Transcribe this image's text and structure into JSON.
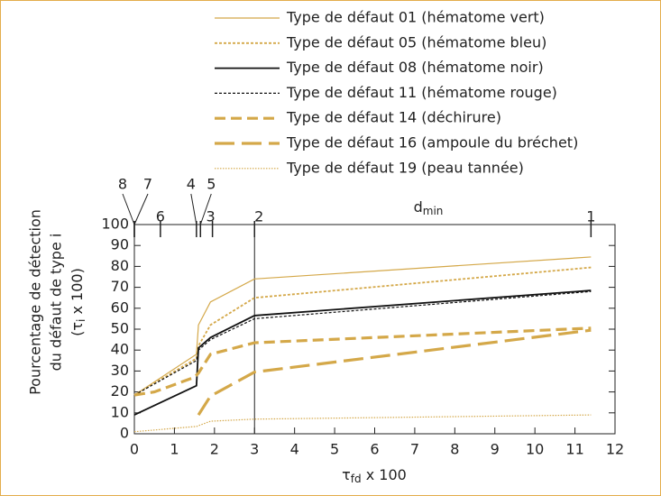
{
  "chart_data": {
    "type": "line",
    "legend_position": "top-right",
    "x_label": [
      "τ",
      "fd",
      " x 100"
    ],
    "y_label": [
      "Pourcentage de détection",
      "du défaut de type i",
      [
        "(τ",
        "i",
        " x 100)"
      ]
    ],
    "top_axis_label": [
      "d",
      "min"
    ],
    "xlim": [
      0,
      12
    ],
    "ylim": [
      0,
      100
    ],
    "xticks": [
      0,
      1,
      2,
      3,
      4,
      5,
      6,
      7,
      8,
      9,
      10,
      11,
      12
    ],
    "yticks": [
      0,
      10,
      20,
      30,
      40,
      50,
      60,
      70,
      80,
      90,
      100
    ],
    "top_xticks": [
      {
        "value": 0,
        "label": "8"
      },
      {
        "value": 0,
        "label": "7"
      },
      {
        "value": 0.65,
        "label": "6"
      },
      {
        "value": 1.55,
        "label": "4"
      },
      {
        "value": 1.65,
        "label": "5"
      },
      {
        "value": 1.95,
        "label": "3"
      },
      {
        "value": 3,
        "label": "2"
      },
      {
        "value": 11.4,
        "label": "1"
      }
    ],
    "series": [
      {
        "name": "Type de défaut 01 (hématome vert)",
        "color": "#d4a849",
        "style": "solid",
        "weight": "thin",
        "x": [
          0,
          1.55,
          1.6,
          1.9,
          3,
          11.4
        ],
        "values": [
          18.5,
          38,
          52,
          63,
          74,
          84.5
        ]
      },
      {
        "name": "Type de défaut 05 (hématome bleu)",
        "color": "#d4a849",
        "style": "dotted",
        "weight": "medium",
        "x": [
          0,
          1.55,
          1.6,
          1.9,
          3,
          11.4
        ],
        "values": [
          18.5,
          36,
          42,
          52,
          65,
          79.5
        ]
      },
      {
        "name": "Type de défaut 08 (hématome noir)",
        "color": "#111111",
        "style": "solid",
        "weight": "medium",
        "x": [
          0,
          1.55,
          1.6,
          1.9,
          3,
          11.4
        ],
        "values": [
          9,
          23,
          41,
          46,
          56.5,
          68.5
        ]
      },
      {
        "name": "Type de défaut 11 (hématome rouge)",
        "color": "#111111",
        "style": "dotted",
        "weight": "thin",
        "x": [
          0,
          1.55,
          1.6,
          1.9,
          3,
          11.4
        ],
        "values": [
          18.5,
          35,
          40,
          45,
          55,
          68
        ]
      },
      {
        "name": "Type de défaut 14 (déchirure)",
        "color": "#d4a849",
        "style": "dashed",
        "weight": "thick",
        "x": [
          0,
          0.5,
          1.5,
          1.6,
          1.9,
          3,
          11.4
        ],
        "values": [
          18.5,
          20,
          27,
          29,
          38,
          43.5,
          50.5
        ]
      },
      {
        "name": "Type de défaut 16 (ampoule du bréchet)",
        "color": "#d4a849",
        "style": "long-dashed",
        "weight": "thick",
        "x": [
          1.6,
          1.9,
          3,
          11.4
        ],
        "values": [
          9,
          18,
          29.5,
          49.5
        ]
      },
      {
        "name": "Type de défaut 19 (peau tannée)",
        "color": "#d4a849",
        "style": "fine-dotted",
        "weight": "thin",
        "x": [
          0,
          1.55,
          1.9,
          3,
          11.4
        ],
        "values": [
          1,
          3.5,
          6,
          7,
          9
        ]
      }
    ]
  }
}
